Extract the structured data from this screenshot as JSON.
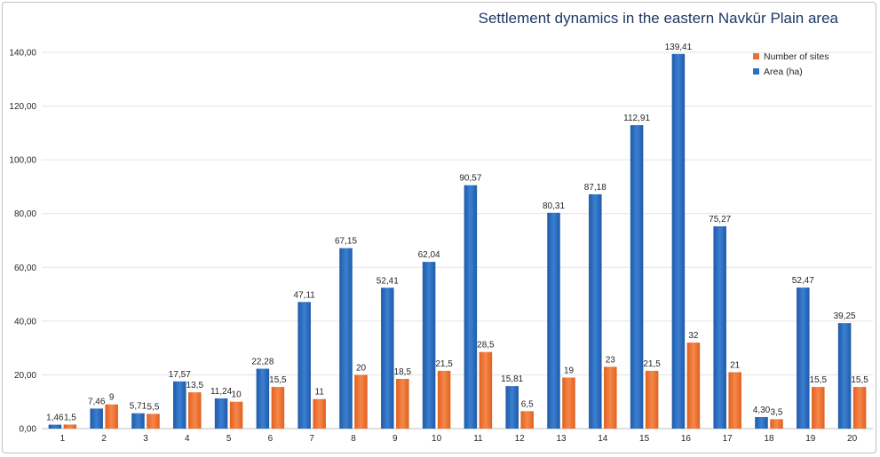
{
  "chart_data": {
    "type": "bar",
    "title": "Settlement dynamics in the eastern Navkūr Plain area",
    "xlabel": "",
    "ylabel": "",
    "ylim": [
      0,
      140
    ],
    "yticks": [
      "0,00",
      "20,00",
      "40,00",
      "60,00",
      "80,00",
      "100,00",
      "120,00",
      "140,00"
    ],
    "categories": [
      "1",
      "2",
      "3",
      "4",
      "5",
      "6",
      "7",
      "8",
      "9",
      "10",
      "11",
      "12",
      "13",
      "14",
      "15",
      "16",
      "17",
      "18",
      "19",
      "20"
    ],
    "grid": true,
    "legend_position": "top-right",
    "series": [
      {
        "name": "Area (ha)",
        "color": "#2e6fc0",
        "values": [
          1.46,
          7.46,
          5.71,
          17.57,
          11.24,
          22.28,
          47.11,
          67.15,
          52.41,
          62.04,
          90.57,
          15.81,
          80.31,
          87.18,
          112.91,
          139.41,
          75.27,
          4.3,
          52.47,
          39.25
        ],
        "labels": [
          "1,46",
          "7,46",
          "5,71",
          "17,57",
          "11,24",
          "22,28",
          "47,11",
          "67,15",
          "52,41",
          "62,04",
          "90,57",
          "15,81",
          "80,31",
          "87,18",
          "112,91",
          "139,41",
          "75,27",
          "4,30",
          "52,47",
          "39,25"
        ]
      },
      {
        "name": "Number of sites",
        "color": "#ed6f31",
        "values": [
          1.5,
          9,
          5.5,
          13.5,
          10,
          15.5,
          11,
          20,
          18.5,
          21.5,
          28.5,
          6.5,
          19,
          23,
          21.5,
          32,
          21,
          3.5,
          15.5,
          15.5
        ],
        "labels": [
          "1,5",
          "9",
          "5,5",
          "13,5",
          "10",
          "15,5",
          "11",
          "20",
          "18,5",
          "21,5",
          "28,5",
          "6,5",
          "19",
          "23",
          "21,5",
          "32",
          "21",
          "3,5",
          "15,5",
          "15,5"
        ]
      }
    ]
  }
}
